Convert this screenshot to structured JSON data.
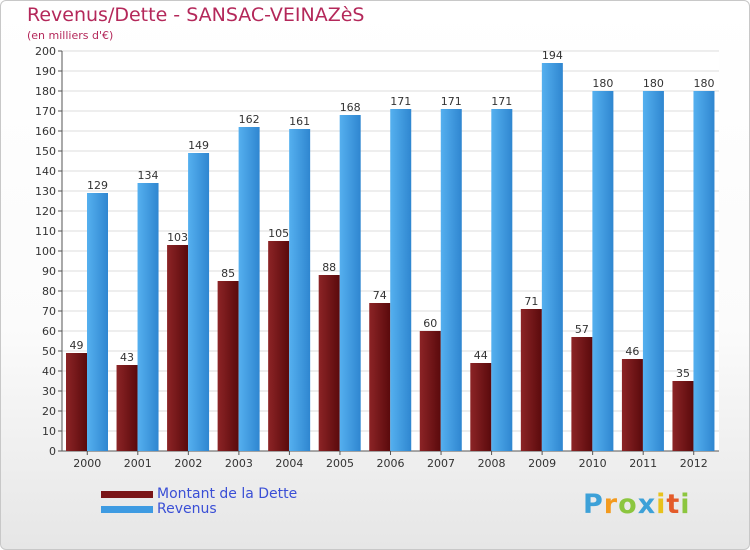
{
  "header": {
    "title": "Revenus/Dette - SANSAC-VEINAZèS",
    "subtitle": "(en milliers d'€)"
  },
  "chart_data": {
    "type": "bar",
    "title": "Revenus/Dette - SANSAC-VEINAZèS",
    "subtitle": "(en milliers d'€)",
    "categories": [
      "2000",
      "2001",
      "2002",
      "2003",
      "2004",
      "2005",
      "2006",
      "2007",
      "2008",
      "2009",
      "2010",
      "2011",
      "2012"
    ],
    "series": [
      {
        "name": "Montant de la Dette",
        "color": "#7a1416",
        "values": [
          49,
          43,
          103,
          85,
          105,
          88,
          74,
          60,
          44,
          71,
          57,
          46,
          35
        ]
      },
      {
        "name": "Revenus",
        "color": "#3e9be2",
        "values": [
          129,
          134,
          149,
          162,
          161,
          168,
          171,
          171,
          171,
          194,
          180,
          180,
          180
        ]
      }
    ],
    "ylim": [
      0,
      200
    ],
    "yticks": [
      0,
      10,
      20,
      30,
      40,
      50,
      60,
      70,
      80,
      90,
      100,
      110,
      120,
      130,
      140,
      150,
      160,
      170,
      180,
      190,
      200
    ],
    "grid": true,
    "legend_position": "bottom-left"
  },
  "legend": {
    "items": [
      {
        "label": "Montant de la Dette",
        "color": "#7a1416"
      },
      {
        "label": "Revenus",
        "color": "#3e9be2"
      }
    ]
  },
  "brand": {
    "letters": [
      "P",
      "r",
      "o",
      "x",
      "i",
      "t",
      "i"
    ],
    "colors": [
      "#3da1d8",
      "#f39a1e",
      "#8cc63f",
      "#3da1d8",
      "#e8c21c",
      "#e45b2a",
      "#8cc63f"
    ]
  }
}
